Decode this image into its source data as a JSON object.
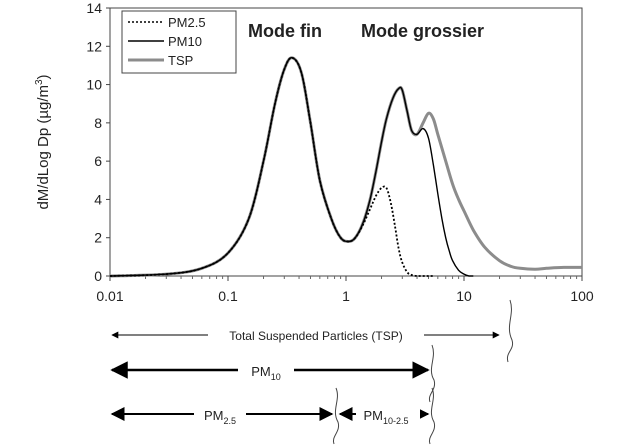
{
  "chart_data": {
    "type": "line",
    "xscale": "log",
    "xlim": [
      0.01,
      100
    ],
    "ylim": [
      0,
      14
    ],
    "ylabel_main": "dM/dLog Dp (",
    "ylabel_unit": "µg/m",
    "ylabel_exp": "3",
    "ylabel_end": ")",
    "xticks": [
      "0.01",
      "0.1",
      "1",
      "10",
      "100"
    ],
    "yticks": [
      "0",
      "2",
      "4",
      "6",
      "8",
      "10",
      "12",
      "14"
    ],
    "annotations": [
      "Mode fin",
      "Mode grossier"
    ],
    "legend_position": "top-left",
    "series": [
      {
        "name": "PM2.5",
        "color": "#000000",
        "style": "dotted",
        "x": [
          0.01,
          0.03,
          0.06,
          0.1,
          0.15,
          0.2,
          0.25,
          0.3,
          0.35,
          0.42,
          0.5,
          0.6,
          0.75,
          0.9,
          1.05,
          1.2,
          1.4,
          1.6,
          1.8,
          2.0,
          2.2,
          2.4,
          2.6,
          2.8,
          3.0,
          3.3,
          3.6,
          4.0,
          4.5,
          5.0,
          5.5
        ],
        "y": [
          0.0,
          0.1,
          0.4,
          1.2,
          3.0,
          6.0,
          9.0,
          10.8,
          11.4,
          10.6,
          8.0,
          5.0,
          3.0,
          2.0,
          1.8,
          2.0,
          2.7,
          3.5,
          4.2,
          4.6,
          4.6,
          3.8,
          2.6,
          1.4,
          0.7,
          0.2,
          0.05,
          0.0,
          0.0,
          0.0,
          0.0
        ]
      },
      {
        "name": "PM10",
        "color": "#000000",
        "style": "solid",
        "x": [
          0.01,
          0.03,
          0.06,
          0.1,
          0.15,
          0.2,
          0.25,
          0.3,
          0.35,
          0.42,
          0.5,
          0.6,
          0.75,
          0.9,
          1.05,
          1.2,
          1.4,
          1.6,
          1.8,
          2.0,
          2.2,
          2.5,
          2.8,
          3.0,
          3.3,
          3.6,
          4.0,
          4.5,
          5.0,
          5.5,
          6.0,
          6.5,
          7.0,
          7.5,
          8.0,
          9.0,
          10.0,
          11.0,
          12.0
        ],
        "y": [
          0.0,
          0.1,
          0.4,
          1.2,
          3.0,
          6.0,
          9.0,
          10.8,
          11.4,
          10.6,
          8.0,
          5.0,
          3.0,
          2.0,
          1.8,
          2.0,
          2.8,
          4.0,
          5.5,
          7.0,
          8.2,
          9.3,
          9.8,
          9.7,
          8.6,
          7.6,
          7.4,
          7.7,
          7.2,
          5.8,
          4.3,
          3.0,
          2.0,
          1.3,
          0.8,
          0.3,
          0.1,
          0.0,
          0.0
        ]
      },
      {
        "name": "TSP",
        "color": "#8c8c8c",
        "style": "solid",
        "x": [
          0.01,
          0.03,
          0.06,
          0.1,
          0.15,
          0.2,
          0.25,
          0.3,
          0.35,
          0.42,
          0.5,
          0.6,
          0.75,
          0.9,
          1.05,
          1.2,
          1.4,
          1.6,
          1.8,
          2.0,
          2.2,
          2.5,
          2.8,
          3.0,
          3.3,
          3.6,
          4.0,
          4.5,
          5.0,
          5.5,
          6.0,
          7.0,
          8.0,
          9.0,
          10.0,
          12.0,
          15.0,
          20.0,
          25.0,
          30.0,
          40.0,
          50.0,
          70.0,
          100.0
        ],
        "y": [
          0.0,
          0.1,
          0.4,
          1.2,
          3.0,
          6.0,
          9.0,
          10.8,
          11.4,
          10.6,
          8.0,
          5.0,
          3.0,
          2.0,
          1.8,
          2.0,
          2.8,
          4.0,
          5.5,
          7.0,
          8.2,
          9.3,
          9.8,
          9.7,
          8.6,
          7.6,
          7.4,
          8.0,
          8.5,
          8.2,
          7.4,
          6.0,
          4.8,
          4.0,
          3.4,
          2.4,
          1.5,
          0.8,
          0.5,
          0.4,
          0.35,
          0.4,
          0.45,
          0.45
        ]
      }
    ]
  },
  "ranges": {
    "tsp": "Total Suspended Particles (TSP)",
    "pm10_main": "PM",
    "pm10_sub": "10",
    "pm25_main": "PM",
    "pm25_sub": "2.5",
    "pm1025_main": "PM",
    "pm1025_sub": "10-2.5"
  }
}
